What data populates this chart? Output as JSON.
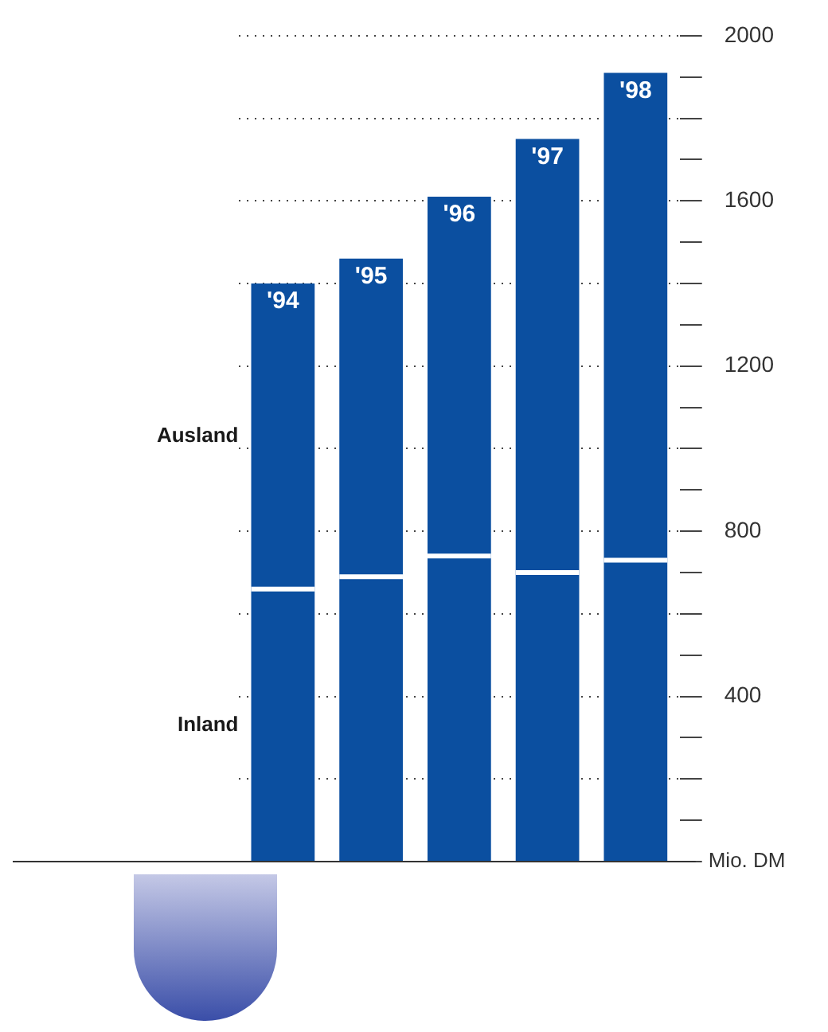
{
  "chart_data": {
    "type": "bar",
    "stacked": true,
    "ylabel": "Mio. DM",
    "categories": [
      "'94",
      "'95",
      "'96",
      "'97",
      "'98"
    ],
    "series": [
      {
        "name": "Inland",
        "color": "#0b4fa0",
        "values": [
          660,
          690,
          740,
          700,
          730
        ]
      },
      {
        "name": "Ausland",
        "color": "#0b4fa0",
        "values": [
          740,
          770,
          870,
          1050,
          1180
        ]
      }
    ],
    "ylim": [
      0,
      2000
    ],
    "yticks": [
      {
        "value": 0,
        "label": null
      },
      {
        "value": 100,
        "label": null
      },
      {
        "value": 200,
        "label": null
      },
      {
        "value": 300,
        "label": null
      },
      400,
      {
        "value": 500,
        "label": null
      },
      {
        "value": 600,
        "label": null
      },
      {
        "value": 700,
        "label": null
      },
      800,
      {
        "value": 900,
        "label": null
      },
      {
        "value": 1000,
        "label": null
      },
      {
        "value": 1100,
        "label": null
      },
      1200,
      {
        "value": 1300,
        "label": null
      },
      {
        "value": 1400,
        "label": null
      },
      {
        "value": 1500,
        "label": null
      },
      1600,
      {
        "value": 1700,
        "label": null
      },
      {
        "value": 1800,
        "label": null
      },
      {
        "value": 1900,
        "label": null
      },
      2000
    ],
    "grid": true,
    "legend": false
  }
}
